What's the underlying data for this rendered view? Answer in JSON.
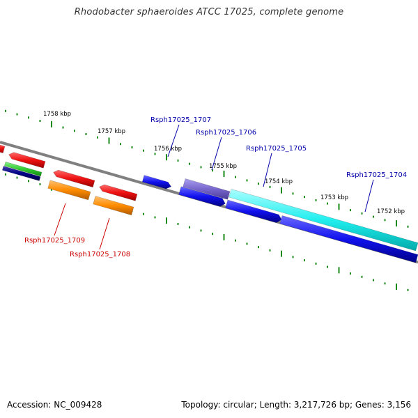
{
  "title": "Rhodobacter sphaeroides ATCC 17025, complete genome",
  "footer": {
    "accession": "Accession: NC_009428",
    "topology": "Topology: circular; Length: 3,217,726 bp; Genes: 3,156"
  },
  "ticks": [
    "1758 kbp",
    "1757 kbp",
    "1756 kbp",
    "1755 kbp",
    "1754 kbp",
    "1753 kbp",
    "1752 kbp"
  ],
  "gene_labels": [
    {
      "text": "Rsph17025_1707",
      "strand": "plus"
    },
    {
      "text": "Rsph17025_1706",
      "strand": "plus"
    },
    {
      "text": "Rsph17025_1705",
      "strand": "plus"
    },
    {
      "text": "Rsph17025_1704",
      "strand": "plus"
    },
    {
      "text": "Rsph17025_1709",
      "strand": "minus"
    },
    {
      "text": "Rsph17025_1708",
      "strand": "minus"
    }
  ],
  "colors": {
    "backbone": "#808080",
    "tick": "#1a8a1a",
    "label_plus": "#0000aa",
    "label_minus": "#cc0000",
    "gene_red": "#ee1111",
    "gene_orange": "#ff8c00",
    "gene_blue": "#1111ee",
    "gene_purple": "#7766cc",
    "gene_cyan": "#22eeee",
    "gene_green": "#33cc33",
    "gene_navy": "#000088"
  }
}
